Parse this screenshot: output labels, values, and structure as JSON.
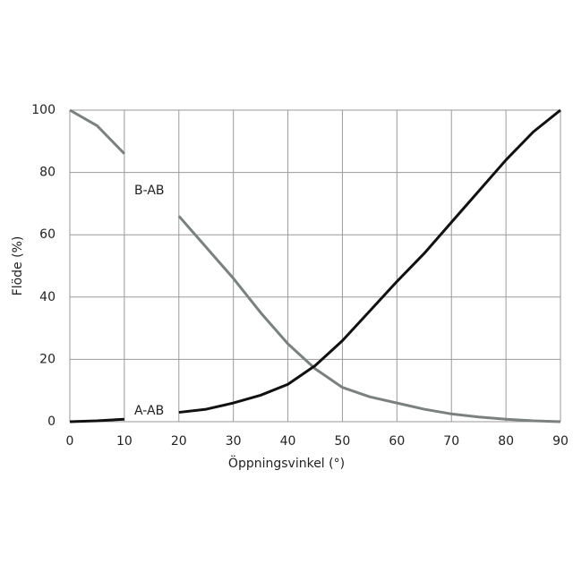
{
  "chart_data": {
    "type": "line",
    "x_label": "Öppningsvinkel (°)",
    "y_label": "Flöde (%)",
    "x": [
      0,
      5,
      10,
      15,
      20,
      25,
      30,
      35,
      40,
      45,
      50,
      55,
      60,
      65,
      70,
      75,
      80,
      85,
      90
    ],
    "series": [
      {
        "name": "B-AB",
        "color": "#7b8080",
        "values": [
          100,
          95,
          86,
          null,
          66,
          56,
          46,
          35,
          25,
          17,
          11,
          8,
          6,
          4,
          2.5,
          1.5,
          0.8,
          0.3,
          0
        ]
      },
      {
        "name": "A-AB",
        "color": "#111111",
        "values": [
          0,
          0.3,
          0.8,
          null,
          3,
          4,
          6,
          8.5,
          12,
          18,
          26,
          35.5,
          45,
          54,
          64,
          74,
          84,
          93,
          100
        ]
      }
    ],
    "xlim": [
      0,
      90
    ],
    "ylim": [
      0,
      100
    ],
    "xticks": [
      0,
      10,
      20,
      30,
      40,
      50,
      60,
      70,
      80,
      90
    ],
    "yticks": [
      0,
      20,
      40,
      60,
      80,
      100
    ],
    "grid": true
  }
}
